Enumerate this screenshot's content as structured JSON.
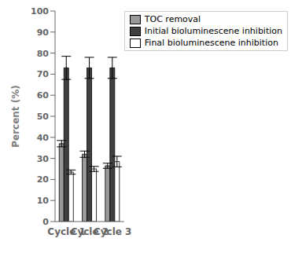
{
  "chart_data": {
    "type": "bar",
    "categories": [
      "Cycle 1",
      "Cycle 2",
      "Cycle 3"
    ],
    "ylabel": "Percent (%)",
    "series": [
      {
        "name": "TOC removal",
        "color": "#999999",
        "values": [
          37.0,
          32.0,
          26.5
        ],
        "errors": [
          1.5,
          1.5,
          1.2
        ]
      },
      {
        "name": "Initial bioluminescene inhibition",
        "color": "#404040",
        "values": [
          73.0,
          73.0,
          73.0
        ],
        "errors": [
          5.5,
          5.0,
          5.0
        ]
      },
      {
        "name": "Final bioluminescene inhibition",
        "color": "#ffffff",
        "values": [
          23.5,
          25.0,
          28.5
        ],
        "errors": [
          1.0,
          1.2,
          2.5
        ]
      }
    ],
    "ylim": [
      0,
      100
    ],
    "yticks": [
      0,
      10,
      20,
      30,
      40,
      50,
      60,
      70,
      80,
      90,
      100
    ],
    "legend": "upper right",
    "grid": false
  }
}
